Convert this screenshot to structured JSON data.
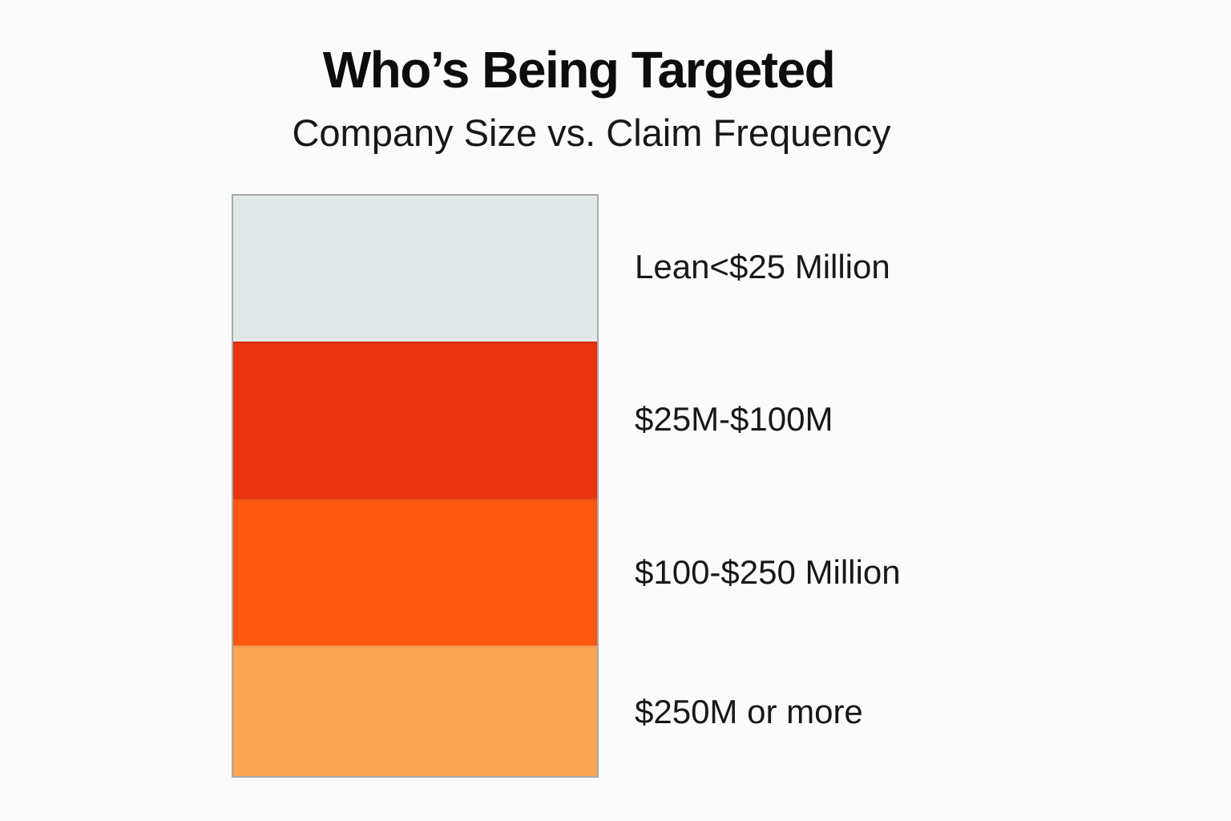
{
  "page": {
    "title": "Who’s Being Targeted",
    "subtitle": "Company Size vs. Claim Frequency"
  },
  "chart_data": {
    "type": "bar",
    "variant": "single-stacked-column-funnel",
    "title": "Who’s Being Targeted",
    "subtitle": "Company Size vs. Claim Frequency",
    "xlabel": "",
    "ylabel": "",
    "grid": false,
    "legend_position": "right-of-bar",
    "categories": [
      "Lean<$25 Million",
      "$25M-$100M",
      "$100-$250 Million",
      "$250M or more"
    ],
    "values_pct_of_column_height": [
      25.1,
      27.1,
      25.3,
      22.5
    ],
    "segments": [
      {
        "label": "Lean<$25 Million",
        "height_pct": 25.1,
        "color": "#e2e8e7"
      },
      {
        "label": "$25M-$100M",
        "height_pct": 27.1,
        "color": "#e8340f"
      },
      {
        "label": "$100-$250 Million",
        "height_pct": 25.3,
        "color": "#fd5712"
      },
      {
        "label": "$250M or more",
        "height_pct": 22.5,
        "color": "#fda653"
      }
    ]
  }
}
